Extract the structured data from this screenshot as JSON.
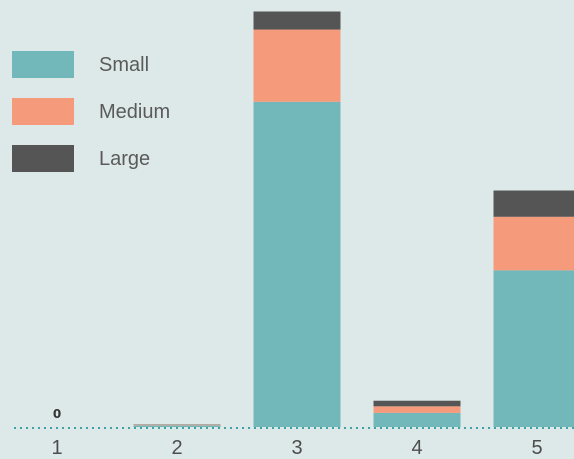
{
  "chart_data": {
    "type": "bar",
    "stacked": true,
    "categories": [
      "1",
      "2",
      "3",
      "4",
      "5"
    ],
    "series": [
      {
        "name": "Small",
        "color": "#72b7b9",
        "values": [
          0,
          0.5,
          99.0,
          4.3,
          47.7
        ]
      },
      {
        "name": "Medium",
        "color": "#f59b7c",
        "values": [
          0,
          0.2,
          22.0,
          2.0,
          16.3
        ]
      },
      {
        "name": "Large",
        "color": "#555555",
        "values": [
          0,
          0.1,
          5.5,
          1.7,
          8.0
        ]
      }
    ],
    "data_labels": [
      {
        "category": "1",
        "text": "0"
      }
    ],
    "ylim": [
      0,
      130
    ],
    "grid": false,
    "baseline": "dotted",
    "legend_position": "top-left",
    "title": "",
    "xlabel": "",
    "ylabel": ""
  }
}
